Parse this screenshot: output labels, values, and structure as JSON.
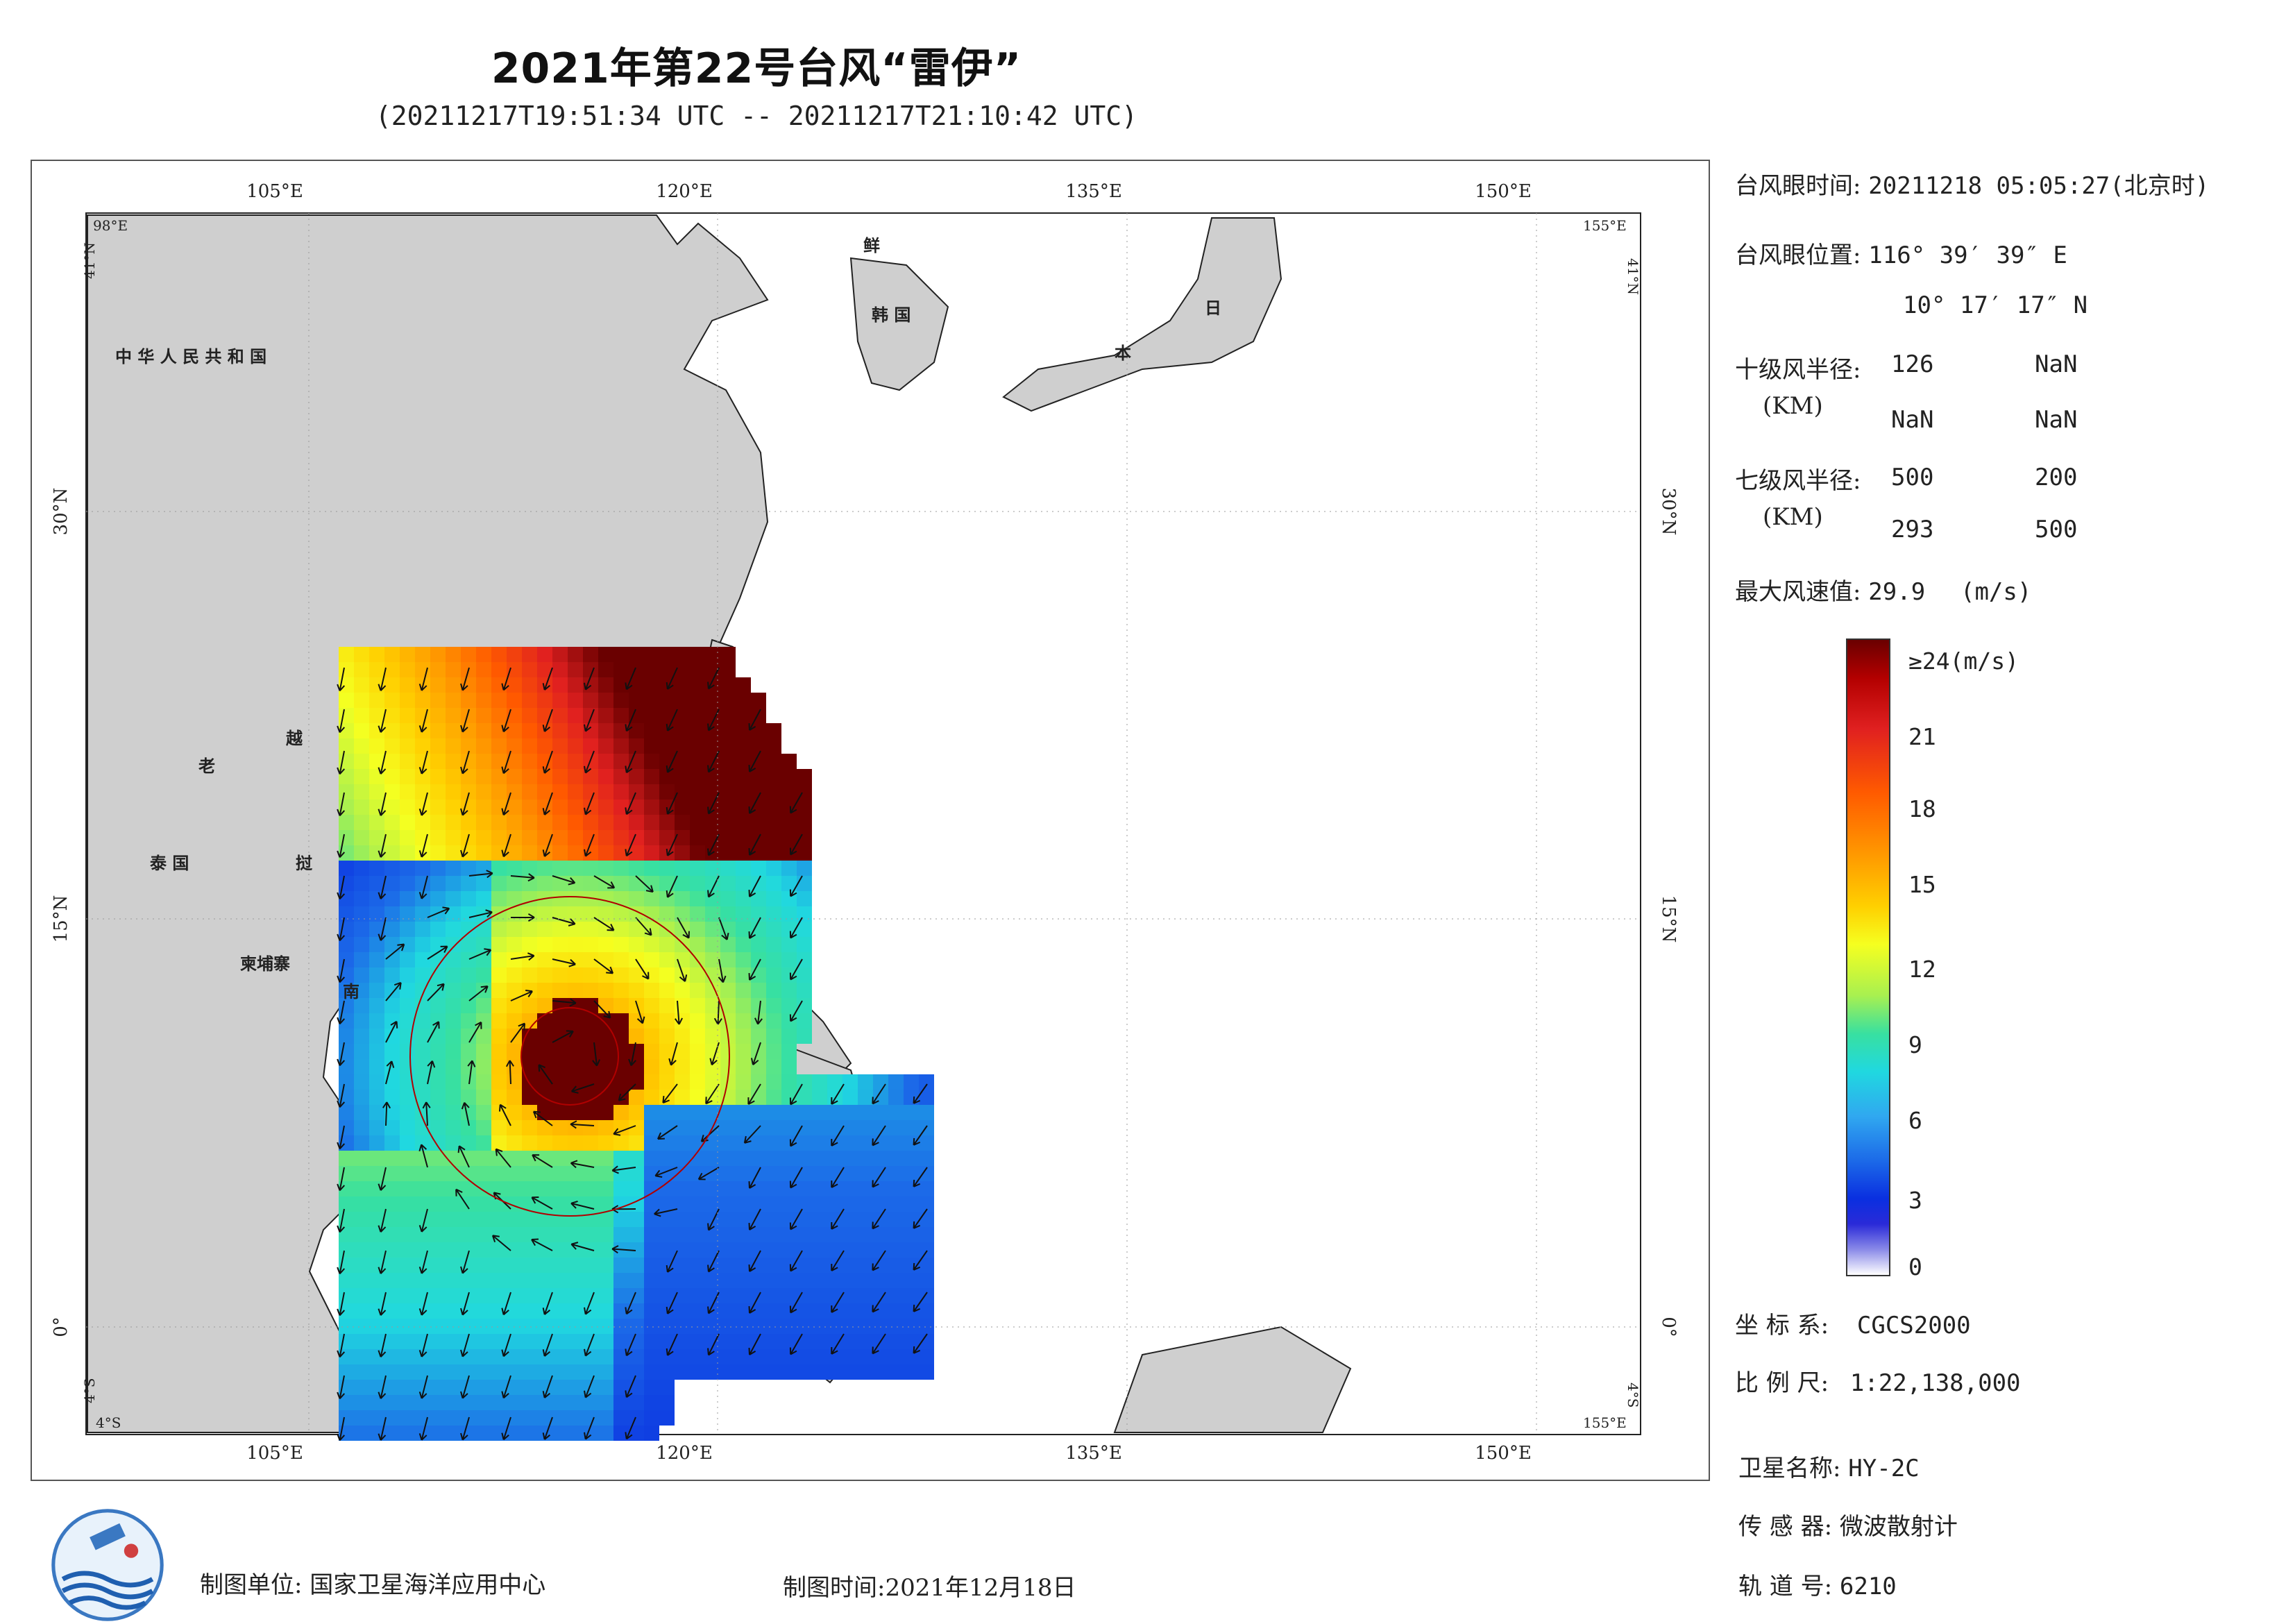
{
  "title": "2021年第22号台风“雷伊”",
  "subtitle": "(20211217T19:51:34 UTC -- 20211217T21:10:42 UTC)",
  "map": {
    "lon_ticks": [
      "105°E",
      "120°E",
      "135°E",
      "150°E"
    ],
    "lat_ticks": [
      "30°N",
      "15°N",
      "0°"
    ],
    "corner_labels": {
      "top_left_lon": "98°E",
      "top_left_lat": "41°N",
      "top_right_lon": "155°E",
      "top_right_lat": "41°N",
      "bottom_left_lat": "4°S",
      "bottom_left_lon": "4°S",
      "bottom_right_lat": "4°S",
      "bottom_right_lon": "155°E"
    },
    "country_labels": [
      "中 华 人 民 共 和 国",
      "鲜",
      "韩 国",
      "日",
      "本",
      "老",
      "越",
      "泰 国",
      "挝",
      "柬埔寨",
      "南"
    ]
  },
  "info": {
    "eye_time_label": "台风眼时间:",
    "eye_time_value": "20211218 05:05:27(北京时)",
    "eye_pos_label": "台风眼位置:",
    "eye_pos_lon": "116° 39′ 39″ E",
    "eye_pos_lat": "10° 17′ 17″ N",
    "r10_label": "十级风半径:",
    "r10_unit": "(KM)",
    "r10_values": [
      "126",
      "NaN",
      "NaN",
      "NaN"
    ],
    "r7_label": "七级风半径:",
    "r7_unit": "(KM)",
    "r7_values": [
      "500",
      "200",
      "293",
      "500"
    ],
    "max_wind_label": "最大风速值:",
    "max_wind_value": "29.9",
    "max_wind_unit": "(m/s)"
  },
  "colorbar": {
    "top_label": "≥24(m/s)",
    "ticks": [
      "21",
      "18",
      "15",
      "12",
      "9",
      "6",
      "3",
      "0"
    ],
    "colors": {
      "max": "#6a0000",
      "high": "#e02020",
      "mid": "#ffd000",
      "low": "#20d8e0",
      "min": "#0a2fe0"
    }
  },
  "meta": {
    "coord_label": "坐 标 系:",
    "coord_value": "CGCS2000",
    "scale_label": "比 例 尺:",
    "scale_value": "1:22,138,000",
    "sat_label": "卫星名称:",
    "sat_value": "HY-2C",
    "sensor_label": "传 感 器:",
    "sensor_value": "微波散射计",
    "orbit_label": "轨 道 号:",
    "orbit_value": "6210"
  },
  "footer": {
    "maker": "制图单位: 国家卫星海洋应用中心",
    "date": "制图时间:2021年12月18日"
  }
}
